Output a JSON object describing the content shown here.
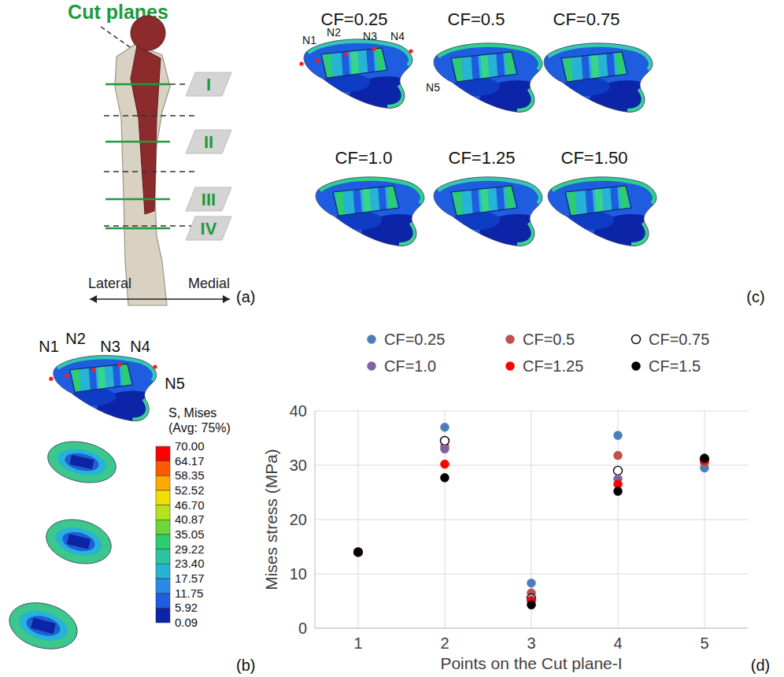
{
  "panels": {
    "a": {
      "label": "(a)",
      "title": "Cut planes",
      "planes": [
        "I",
        "II",
        "III",
        "IV"
      ],
      "directions": [
        "Lateral",
        "Medial"
      ]
    },
    "b": {
      "label": "(b)",
      "points": [
        "N1",
        "N2",
        "N3",
        "N4",
        "N5"
      ],
      "colorbar": {
        "title": "S, Mises",
        "subtitle": "(Avg: 75%)",
        "ticks": [
          {
            "value": 70,
            "label": "70.00"
          },
          {
            "value": 64.17,
            "label": "64.17"
          },
          {
            "value": 58.35,
            "label": "58.35"
          },
          {
            "value": 52.52,
            "label": "52.52"
          },
          {
            "value": 46.7,
            "label": "46.70"
          },
          {
            "value": 40.87,
            "label": "40.87"
          },
          {
            "value": 35.05,
            "label": "35.05"
          },
          {
            "value": 29.22,
            "label": "29.22"
          },
          {
            "value": 23.4,
            "label": "23.40"
          },
          {
            "value": 17.57,
            "label": "17.57"
          },
          {
            "value": 11.75,
            "label": "11.75"
          },
          {
            "value": 5.92,
            "label": "5.92"
          },
          {
            "value": 0.09,
            "label": "0.09"
          }
        ]
      }
    },
    "c": {
      "label": "(c)",
      "cases": [
        "CF=0.25",
        "CF=0.5",
        "CF=0.75",
        "CF=1.0",
        "CF=1.25",
        "CF=1.50"
      ],
      "points": [
        "N1",
        "N2",
        "N3",
        "N4",
        "N5"
      ]
    },
    "d": {
      "label": "(d)"
    }
  },
  "chart_data": {
    "type": "scatter",
    "x_label": "Points on the Cut plane-I",
    "y_label": "Mises stress (MPa)",
    "x": [
      1,
      2,
      3,
      4,
      5
    ],
    "xlim": [
      0.5,
      5.5
    ],
    "xticks": [
      1,
      2,
      3,
      4,
      5
    ],
    "ylim": [
      0,
      40
    ],
    "yticks": [
      0,
      10,
      20,
      30,
      40
    ],
    "grid": true,
    "legend": "top",
    "series": [
      {
        "name": "CF=0.25",
        "color": "#4a7ebb",
        "marker": "circle",
        "values": [
          14,
          37,
          8.3,
          35.5,
          29.5
        ]
      },
      {
        "name": "CF=0.5",
        "color": "#c0504d",
        "marker": "circle",
        "values": [
          14,
          33.5,
          6.5,
          31.8,
          30.5
        ]
      },
      {
        "name": "CF=0.75",
        "color": "#000000",
        "marker": "open_circle",
        "values": [
          14,
          34.5,
          5.5,
          29,
          31
        ]
      },
      {
        "name": "CF=1.0",
        "color": "#8064a2",
        "marker": "circle",
        "values": [
          14,
          33,
          5.2,
          27.5,
          31
        ]
      },
      {
        "name": "CF=1.25",
        "color": "#ff0000",
        "marker": "circle",
        "values": [
          14,
          30.2,
          5,
          26.5,
          31
        ]
      },
      {
        "name": "CF=1.5",
        "color": "#000000",
        "marker": "circle",
        "values": [
          14,
          27.7,
          4.3,
          25.2,
          31.3
        ]
      }
    ]
  }
}
